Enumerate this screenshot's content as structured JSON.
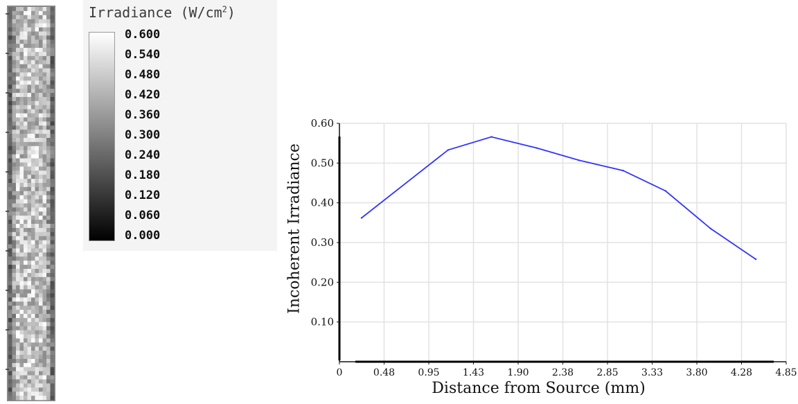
{
  "colorbar": {
    "title": "Irradiance (W/cm",
    "title_sup": "2",
    "title_close": ")",
    "labels": [
      "0.600",
      "0.540",
      "0.480",
      "0.420",
      "0.360",
      "0.300",
      "0.240",
      "0.180",
      "0.120",
      "0.060",
      "0.000"
    ],
    "max": 0.6,
    "min": 0.0,
    "gradient_top_color": "#ffffff",
    "gradient_bottom_color": "#000000"
  },
  "chart_data": {
    "type": "line",
    "title": "",
    "xlabel": "Distance from Source (mm)",
    "ylabel": "Incoherent Irradiance",
    "x_tick_labels": [
      "0",
      "0.48",
      "0.95",
      "1.43",
      "1.90",
      "2.38",
      "2.85",
      "3.33",
      "3.80",
      "4.28",
      "4.85"
    ],
    "y_tick_labels": [
      "0.10",
      "0.20",
      "0.30",
      "0.40",
      "0.50",
      "0.60"
    ],
    "xlim": [
      0,
      4.85
    ],
    "ylim": [
      0,
      0.6
    ],
    "grid": true,
    "series": [
      {
        "color": "#3333ff",
        "x": [
          0.24,
          1.18,
          1.65,
          2.14,
          2.6,
          3.08,
          3.54,
          4.03,
          4.52
        ],
        "y": [
          0.362,
          0.533,
          0.566,
          0.538,
          0.507,
          0.481,
          0.43,
          0.335,
          0.258
        ]
      }
    ]
  }
}
